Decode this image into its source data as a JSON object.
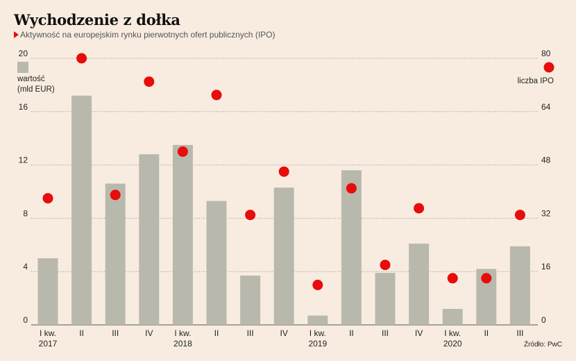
{
  "title": "Wychodzenie z dołka",
  "subtitle": "Aktywność na europejskim rynku pierwotnych ofert publicznych (IPO)",
  "source": "Źródło: PwC",
  "colors": {
    "bar": "#b9b8ad",
    "dot": "#e80c0c",
    "grid": "#a8a29a",
    "background": "#f8ece0"
  },
  "chart_data": {
    "type": "bar+scatter",
    "categories": [
      "I kw.",
      "II",
      "III",
      "IV",
      "I kw.",
      "II",
      "III",
      "IV",
      "I kw.",
      "II",
      "III",
      "IV",
      "I kw.",
      "II",
      "III"
    ],
    "years": [
      {
        "label": "2017",
        "index": 0
      },
      {
        "label": "2018",
        "index": 4
      },
      {
        "label": "2019",
        "index": 8
      },
      {
        "label": "2020",
        "index": 12
      }
    ],
    "series": [
      {
        "name": "wartość\n(mld EUR)",
        "legend_lines": [
          "wartość",
          "(mld EUR)"
        ],
        "axis": "left",
        "kind": "bar",
        "values": [
          5.0,
          17.2,
          10.6,
          12.8,
          13.5,
          9.3,
          3.7,
          10.3,
          0.7,
          11.6,
          3.9,
          6.1,
          1.2,
          4.2,
          5.9
        ]
      },
      {
        "name": "liczba IPO",
        "legend_lines": [
          "liczba IPO"
        ],
        "axis": "right",
        "kind": "dot",
        "values": [
          38,
          80,
          39,
          73,
          52,
          69,
          33,
          46,
          12,
          41,
          18,
          35,
          14,
          14,
          33
        ]
      }
    ],
    "left_axis": {
      "ylim": [
        0,
        20
      ],
      "ticks": [
        0,
        4,
        8,
        12,
        16,
        20
      ]
    },
    "right_axis": {
      "ylim": [
        0,
        80
      ],
      "ticks": [
        0,
        16,
        32,
        48,
        64,
        80
      ]
    },
    "grid": true
  }
}
